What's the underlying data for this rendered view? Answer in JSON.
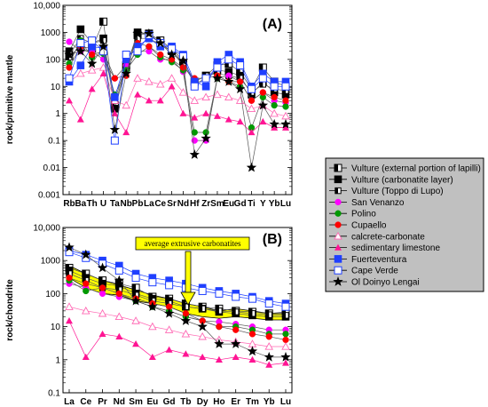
{
  "chart_data": [
    {
      "type": "line",
      "title": "(A)",
      "ylabel": "rock/primitive mantle",
      "yscale": "log",
      "ylim": [
        0.001,
        10000
      ],
      "yticks": [
        "0.001",
        "0.01",
        "0.1",
        "1",
        "10",
        "100",
        "1000",
        "10,000"
      ],
      "categories": [
        "Rb",
        "Ba",
        "Th",
        "U",
        "Ta",
        "Nb",
        "Pb",
        "La",
        "Ce",
        "Sr",
        "Nd",
        "Hf",
        "Zr",
        "Sm",
        "Eu",
        "Gd",
        "Ti",
        "Y",
        "Yb",
        "Lu"
      ],
      "series": [
        {
          "name": "Vulture (external portion of lapilli)",
          "values": [
            130,
            300,
            250,
            2500,
            2,
            60,
            800,
            900,
            500,
            250,
            90,
            15,
            25,
            60,
            70,
            35,
            8,
            50,
            15,
            10
          ]
        },
        {
          "name": "Vulture (carbonatite layer)",
          "values": [
            200,
            1300,
            400,
            600,
            1.5,
            50,
            1000,
            900,
            400,
            200,
            80,
            12,
            20,
            40,
            35,
            25,
            5,
            15,
            6,
            5
          ]
        },
        {
          "name": "Vulture (Toppo di Lupo)",
          "values": [
            150,
            600,
            400,
            500,
            3,
            70,
            600,
            600,
            350,
            200,
            60,
            15,
            25,
            30,
            25,
            20,
            6,
            12,
            8,
            7
          ]
        },
        {
          "name": "San Venanzo",
          "values": [
            450,
            200,
            200,
            100,
            20,
            60,
            200,
            200,
            100,
            100,
            35,
            0.1,
            0.1,
            20,
            25,
            15,
            3,
            6,
            3,
            2.5
          ]
        },
        {
          "name": "Polino",
          "values": [
            70,
            500,
            120,
            160,
            5,
            40,
            150,
            300,
            120,
            80,
            40,
            0.2,
            0.2,
            20,
            15,
            10,
            0.3,
            4,
            2,
            1.8
          ]
        },
        {
          "name": "Cupaello",
          "values": [
            50,
            300,
            150,
            200,
            20,
            25,
            400,
            300,
            150,
            100,
            50,
            20,
            20,
            25,
            15,
            15,
            3,
            6,
            4,
            3
          ]
        },
        {
          "name": "calcrete-carbonate",
          "values": [
            15,
            30,
            40,
            50,
            3,
            2,
            20,
            15,
            12,
            20,
            6,
            3,
            4,
            5,
            4,
            3,
            1.5,
            2,
            1,
            0.8
          ]
        },
        {
          "name": "sedimentary limestone",
          "values": [
            3,
            0.6,
            8,
            30,
            1,
            0.2,
            5,
            3,
            3,
            10,
            1,
            0.7,
            1,
            0.8,
            0.6,
            0.5,
            0.2,
            0.5,
            0.3,
            0.3
          ]
        },
        {
          "name": "Fuerteventura",
          "values": [
            15,
            60,
            300,
            250,
            4,
            100,
            300,
            600,
            300,
            300,
            150,
            15,
            10,
            80,
            150,
            80,
            10,
            30,
            15,
            15
          ]
        },
        {
          "name": "Cape Verde",
          "values": [
            20,
            400,
            500,
            200,
            0.1,
            150,
            200,
            800,
            400,
            250,
            130,
            10,
            20,
            50,
            100,
            60,
            8,
            20,
            10,
            10
          ]
        },
        {
          "name": "Ol Doinyo Lengai",
          "values": [
            150,
            200,
            70,
            300,
            0.25,
            30,
            900,
            900,
            400,
            150,
            90,
            0.03,
            0.12,
            20,
            15,
            8,
            0.01,
            2,
            0.4,
            0.4
          ]
        }
      ]
    },
    {
      "type": "line",
      "title": "(B)",
      "ylabel": "rock/chondrite",
      "yscale": "log",
      "ylim": [
        0.1,
        10000
      ],
      "yticks": [
        "0.1",
        "1",
        "10",
        "100",
        "1000",
        "10,000"
      ],
      "categories": [
        "La",
        "Ce",
        "Pr",
        "Nd",
        "Sm",
        "Eu",
        "Gd",
        "Tb",
        "Dy",
        "Ho",
        "Er",
        "Tm",
        "Yb",
        "Lu"
      ],
      "annotation": "average extrusive carbonatites",
      "band": {
        "lower": [
          300,
          150,
          100,
          90,
          60,
          50,
          40,
          25,
          20,
          18,
          20,
          18,
          16,
          16
        ],
        "upper": [
          700,
          400,
          250,
          180,
          130,
          90,
          70,
          50,
          40,
          30,
          35,
          30,
          25,
          25
        ]
      },
      "series": [
        {
          "name": "Vulture (external portion of lapilli)",
          "values": [
            600,
            400,
            250,
            200,
            150,
            80,
            70,
            50,
            40,
            35,
            30,
            28,
            25,
            28
          ]
        },
        {
          "name": "Vulture (carbonatite layer)",
          "values": [
            500,
            300,
            200,
            170,
            100,
            70,
            60,
            40,
            35,
            28,
            25,
            22,
            20,
            20
          ]
        },
        {
          "name": "Vulture (Toppo di Lupo)",
          "values": [
            400,
            250,
            150,
            130,
            90,
            60,
            50,
            40,
            35,
            30,
            28,
            25,
            23,
            22
          ]
        },
        {
          "name": "San Venanzo",
          "values": [
            200,
            150,
            100,
            80,
            60,
            40,
            30,
            20,
            15,
            14,
            12,
            10,
            8,
            8
          ]
        },
        {
          "name": "Polino",
          "values": [
            250,
            120,
            150,
            100,
            60,
            40,
            30,
            20,
            15,
            10,
            10,
            8,
            6,
            6
          ]
        },
        {
          "name": "Cupaello",
          "values": [
            300,
            200,
            150,
            100,
            70,
            50,
            40,
            25,
            15,
            10,
            8,
            6,
            5,
            4
          ]
        },
        {
          "name": "calcrete-carbonate",
          "values": [
            40,
            30,
            25,
            20,
            15,
            10,
            8,
            6,
            5,
            4,
            3.5,
            3,
            2.5,
            2.5
          ]
        },
        {
          "name": "sedimentary limestone",
          "values": [
            15,
            1.2,
            6,
            5,
            3,
            1.2,
            2,
            1.5,
            1.2,
            1.0,
            1.2,
            1.0,
            0.7,
            0.8
          ]
        },
        {
          "name": "Fuerteventura",
          "values": [
            2000,
            1500,
            1000,
            700,
            400,
            300,
            250,
            200,
            150,
            120,
            100,
            80,
            60,
            50
          ]
        },
        {
          "name": "Cape Verde",
          "values": [
            1800,
            1200,
            800,
            500,
            300,
            220,
            180,
            150,
            120,
            100,
            80,
            70,
            50,
            40
          ]
        },
        {
          "name": "Ol Doinyo Lengai",
          "values": [
            2500,
            1500,
            600,
            250,
            60,
            40,
            25,
            15,
            10,
            3,
            3,
            1.8,
            1.2,
            1.2
          ]
        }
      ]
    }
  ],
  "legend": [
    {
      "label": "Vulture (external portion of lapilli)",
      "marker": "half-square",
      "color": "#000000"
    },
    {
      "label": "Vulture (carbonatite layer)",
      "marker": "filled-square",
      "color": "#000000"
    },
    {
      "label": "Vulture (Toppo di Lupo)",
      "marker": "half-square-small",
      "color": "#000000"
    },
    {
      "label": "San Venanzo",
      "marker": "filled-circle",
      "color": "#ff00ff"
    },
    {
      "label": "Polino",
      "marker": "filled-circle",
      "color": "#009900"
    },
    {
      "label": "Cupaello",
      "marker": "filled-circle",
      "color": "#ff0000"
    },
    {
      "label": "calcrete-carbonate",
      "marker": "open-triangle",
      "color": "#ff69b4"
    },
    {
      "label": "sedimentary limestone",
      "marker": "filled-triangle",
      "color": "#ff1493"
    },
    {
      "label": "Fuerteventura",
      "marker": "filled-square",
      "color": "#1f3fff"
    },
    {
      "label": "Cape Verde",
      "marker": "open-square",
      "color": "#1f3fff"
    },
    {
      "label": "Ol Doinyo Lengai",
      "marker": "star",
      "color": "#000000"
    }
  ],
  "colors": {
    "legend_bg": "#c0c0c0",
    "band_fill": "#ffff00",
    "annotation_bg": "#ffff00"
  }
}
